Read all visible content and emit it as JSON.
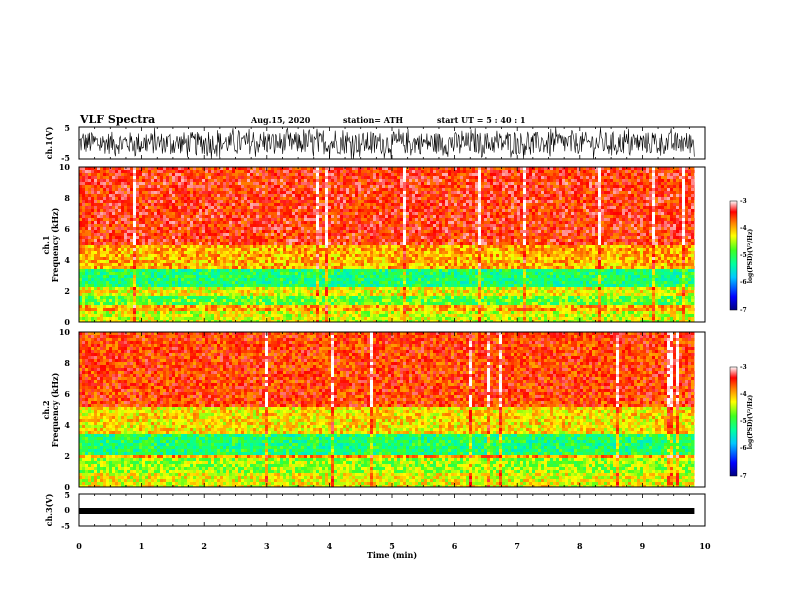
{
  "header": {
    "title": "VLF Spectra",
    "date": "Aug.15, 2020",
    "station": "station= ATH",
    "start_ut": "start  UT =  5 : 40 : 1"
  },
  "colors": {
    "colormap": [
      "#00007f",
      "#0000ff",
      "#00c8ff",
      "#00ffa0",
      "#40ff20",
      "#ffff00",
      "#ff8000",
      "#ff0000",
      "#ffffff"
    ],
    "trace": "#000000"
  },
  "chart_data": [
    {
      "type": "line",
      "ylabel": "ch.1(V)",
      "ylim": [
        -5,
        5
      ],
      "y_ticks": [
        "5",
        "-5"
      ],
      "note": "dense noise waveform spanning full range"
    },
    {
      "type": "heatmap",
      "ylabel": "ch.1",
      "ylabel2": "Frequency  (kHz)",
      "ylim": [
        0,
        10
      ],
      "y_ticks": [
        "0",
        "2",
        "4",
        "6",
        "8",
        "10"
      ],
      "bands": [
        {
          "from": 0,
          "to": 0.8,
          "level": -4.6
        },
        {
          "from": 0.8,
          "to": 1.1,
          "level": -4.2
        },
        {
          "from": 1.1,
          "to": 1.7,
          "level": -5.0
        },
        {
          "from": 1.7,
          "to": 2.3,
          "level": -4.5
        },
        {
          "from": 2.3,
          "to": 3.4,
          "level": -5.3
        },
        {
          "from": 3.4,
          "to": 5.0,
          "level": -4.2
        },
        {
          "from": 5.0,
          "to": 10.0,
          "level": -3.6
        }
      ],
      "colorbar": {
        "label": "log(PSD)(V²/Hz)",
        "ticks": [
          "-3",
          "-4",
          "-5",
          "-6",
          "-7"
        ],
        "range": [
          -7,
          -3
        ]
      }
    },
    {
      "type": "heatmap",
      "ylabel": "ch.2",
      "ylabel2": "Frequency  (kHz)",
      "ylim": [
        0,
        10
      ],
      "y_ticks": [
        "0",
        "2",
        "4",
        "6",
        "8",
        "10"
      ],
      "bands": [
        {
          "from": 0,
          "to": 1.0,
          "level": -4.5
        },
        {
          "from": 1.0,
          "to": 1.8,
          "level": -4.8
        },
        {
          "from": 1.8,
          "to": 2.1,
          "level": -4.1
        },
        {
          "from": 2.1,
          "to": 3.5,
          "level": -5.3
        },
        {
          "from": 3.5,
          "to": 5.2,
          "level": -4.4
        },
        {
          "from": 5.2,
          "to": 10.0,
          "level": -3.7
        }
      ],
      "colorbar": {
        "label": "log(PSD)(V²/Hz)",
        "ticks": [
          "-3",
          "-4",
          "-5",
          "-6",
          "-7"
        ],
        "range": [
          -7,
          -3
        ]
      }
    },
    {
      "type": "line",
      "ylabel": "ch.3(V)",
      "ylim": [
        -5,
        5
      ],
      "y_ticks": [
        "5",
        "0",
        "-5"
      ],
      "note": "flat trace near 0 V"
    }
  ],
  "x_axis": {
    "label": "Time  (min)",
    "ticks": [
      "0",
      "1",
      "2",
      "3",
      "4",
      "5",
      "6",
      "7",
      "8",
      "9",
      "10"
    ],
    "xlim": [
      0,
      10
    ],
    "data_end": 9.83
  }
}
